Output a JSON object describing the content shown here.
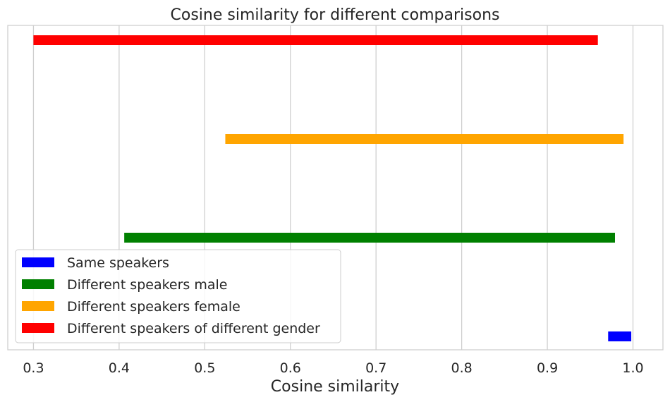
{
  "chart_data": {
    "type": "bar",
    "orientation": "horizontal-range",
    "title": "Cosine similarity for different comparisons",
    "xlabel": "Cosine similarity",
    "ylabel": "",
    "xlim": [
      0.27,
      1.035
    ],
    "xticks": [
      0.3,
      0.4,
      0.5,
      0.6,
      0.7,
      0.8,
      0.9,
      1.0
    ],
    "xtick_labels": [
      "0.3",
      "0.4",
      "0.5",
      "0.6",
      "0.7",
      "0.8",
      "0.9",
      "1.0"
    ],
    "grid": "vertical",
    "legend_position": "lower-left",
    "series": [
      {
        "name": "Same speakers",
        "color": "#0000ff",
        "start": 0.971,
        "end": 0.998
      },
      {
        "name": "Different speakers male",
        "color": "#008000",
        "start": 0.406,
        "end": 0.979
      },
      {
        "name": "Different speakers female",
        "color": "#ffa500",
        "start": 0.524,
        "end": 0.989
      },
      {
        "name": "Different speakers of different gender",
        "color": "#ff0000",
        "start": 0.3,
        "end": 0.959
      }
    ]
  }
}
